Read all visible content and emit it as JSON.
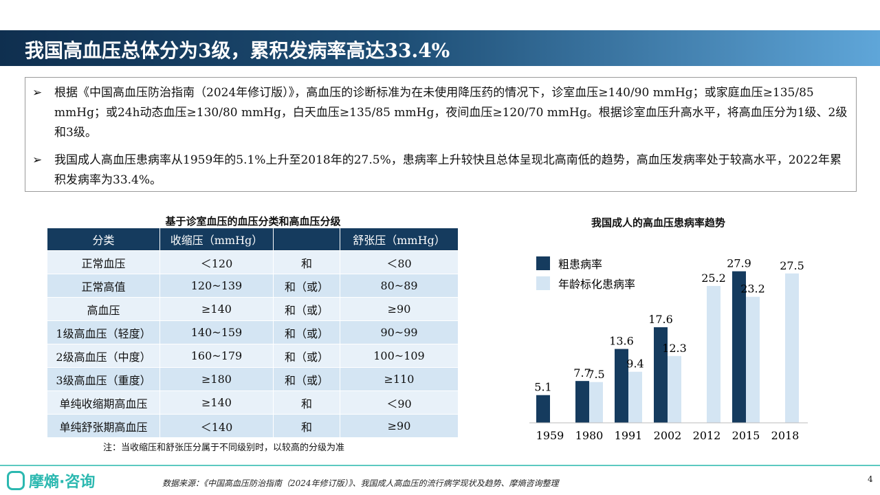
{
  "header": {
    "title": "我国高血压总体分为3级，累积发病率高达33.4%"
  },
  "bullets": [
    "根据《中国高血压防治指南（2024年修订版）》，高血压的诊断标准为在未使用降压药的情况下，诊室血压≥140/90 mmHg；或家庭血压≥135/85 mmHg；或24h动态血压≥130/80 mmHg，白天血压≥135/85 mmHg，夜间血压≥120/70 mmHg。根据诊室血压升高水平，将高血压分为1级、2级和3级。",
    "我国成人高血压患病率从1959年的5.1%上升至2018年的27.5%，患病率上升较快且总体呈现北高南低的趋势，高血压发病率处于较高水平，2022年累积发病率为33.4%。"
  ],
  "bullet_marker": "➢",
  "table": {
    "caption": "基于诊室血压的血压分类和高血压分级",
    "headers": [
      "分类",
      "收缩压（mmHg）",
      "",
      "舒张压（mmHg）"
    ],
    "rows": [
      [
        "正常血压",
        "＜120",
        "和",
        "＜80"
      ],
      [
        "正常高值",
        "120~139",
        "和（或）",
        "80~89"
      ],
      [
        "高血压",
        "≥140",
        "和（或）",
        "≥90"
      ],
      [
        "1级高血压（轻度）",
        "140~159",
        "和（或）",
        "90~99"
      ],
      [
        "2级高血压（中度）",
        "160~179",
        "和（或）",
        "100~109"
      ],
      [
        "3级高血压（重度）",
        "≥180",
        "和（或）",
        "≥110"
      ],
      [
        "单纯收缩期高血压",
        "≥140",
        "和",
        "＜90"
      ],
      [
        "单纯舒张期高血压",
        "＜140",
        "和",
        "≥90"
      ]
    ],
    "note": "注：当收缩压和舒张压分属于不同级别时，以较高的分级为准"
  },
  "chart_data": {
    "type": "bar",
    "title": "我国成人的高血压患病率趋势",
    "categories": [
      "1959",
      "1980",
      "1991",
      "2002",
      "2012",
      "2015",
      "2018"
    ],
    "series": [
      {
        "name": "粗患病率",
        "color": "#153b5e",
        "values": [
          5.1,
          7.7,
          13.6,
          17.6,
          null,
          27.9,
          null
        ]
      },
      {
        "name": "年龄标化患病率",
        "color": "#d4e5f3",
        "values": [
          null,
          7.5,
          9.4,
          12.3,
          25.2,
          23.2,
          27.5
        ]
      }
    ],
    "ylim": [
      0,
      30
    ],
    "legend": "top-left"
  },
  "footer": {
    "logo": "摩熵·咨询",
    "source": "数据来源：《中国高血压防治指南（2024年修订版）》、我国成人高血压的流行病学现状及趋势、摩熵咨询整理",
    "page": "4"
  }
}
